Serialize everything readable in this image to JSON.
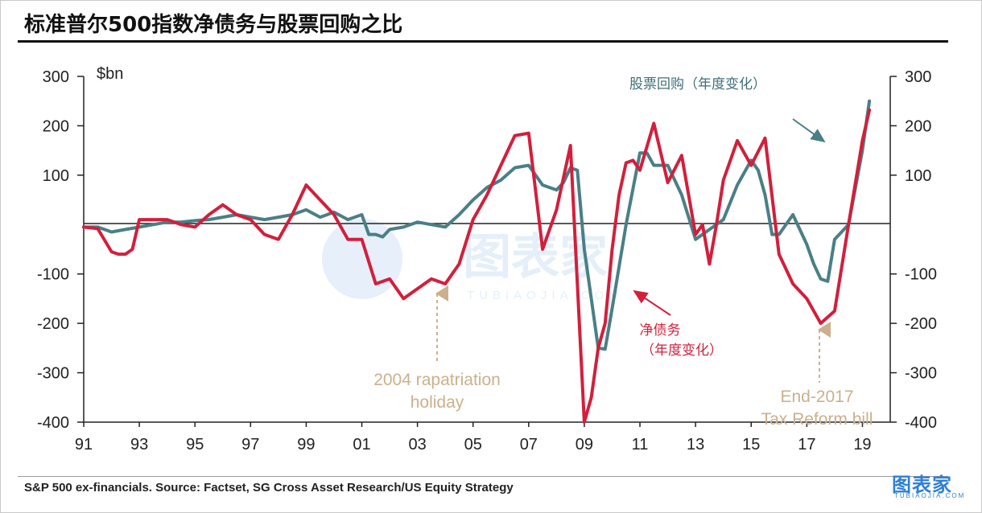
{
  "header": {
    "title": "标准普尔500指数净债务与股票回购之比"
  },
  "footer": {
    "source": "S&P 500 ex-financials. Source: Factset, SG Cross Asset Research/US Equity Strategy"
  },
  "watermark": {
    "logo_text": "图表家",
    "logo_sub": "TUBIAOJIA.COM",
    "center_text": "图表家",
    "center_sub": "TUBIAOJIA.COM",
    "color": "#2e7fd6"
  },
  "chart_data": {
    "type": "line",
    "title": "标准普尔500指数净债务与股票回购之比",
    "ylabel": "$bn",
    "ylim": [
      -400,
      300
    ],
    "yticks": [
      300,
      200,
      100,
      -100,
      -200,
      -300,
      -400
    ],
    "ytick_labels": [
      "300",
      "200",
      "100",
      "-100",
      "-200",
      "-300",
      "-400"
    ],
    "xlim": [
      1991,
      2020
    ],
    "xticks": [
      1991,
      1993,
      1995,
      1997,
      1999,
      2001,
      2003,
      2005,
      2007,
      2009,
      2011,
      2013,
      2015,
      2017,
      2019
    ],
    "xtick_labels": [
      "91",
      "93",
      "95",
      "97",
      "99",
      "01",
      "03",
      "05",
      "07",
      "09",
      "11",
      "13",
      "15",
      "17",
      "19"
    ],
    "colors": {
      "buyback": "#4a7f86",
      "net_debt": "#d21f3c",
      "annotation_tan": "#cbb08c"
    },
    "series": [
      {
        "name": "股票回购（年度变化）",
        "x": [
          1991.0,
          1991.5,
          1992.0,
          1992.5,
          1993.0,
          1993.5,
          1994.0,
          1994.5,
          1995.0,
          1995.5,
          1996.0,
          1996.5,
          1997.0,
          1997.5,
          1998.0,
          1998.5,
          1999.0,
          1999.5,
          2000.0,
          2000.5,
          2001.0,
          2001.25,
          2001.5,
          2001.75,
          2002.0,
          2002.5,
          2003.0,
          2003.5,
          2004.0,
          2004.5,
          2005.0,
          2005.5,
          2006.0,
          2006.5,
          2007.0,
          2007.5,
          2008.0,
          2008.25,
          2008.5,
          2008.75,
          2009.0,
          2009.25,
          2009.5,
          2009.75,
          2010.0,
          2010.5,
          2011.0,
          2011.25,
          2011.5,
          2011.75,
          2012.0,
          2012.5,
          2013.0,
          2013.5,
          2014.0,
          2014.5,
          2015.0,
          2015.25,
          2015.5,
          2015.75,
          2016.0,
          2016.5,
          2017.0,
          2017.25,
          2017.5,
          2017.75,
          2018.0,
          2018.5,
          2019.0,
          2019.25
        ],
        "values": [
          -5,
          -5,
          -15,
          -10,
          -5,
          0,
          5,
          5,
          8,
          10,
          15,
          20,
          15,
          10,
          15,
          20,
          30,
          15,
          25,
          10,
          20,
          -20,
          -20,
          -25,
          -10,
          -5,
          5,
          0,
          -5,
          20,
          50,
          75,
          90,
          115,
          120,
          80,
          70,
          85,
          115,
          110,
          -50,
          -150,
          -250,
          -252,
          -170,
          0,
          145,
          145,
          120,
          120,
          120,
          60,
          -30,
          -10,
          10,
          80,
          130,
          110,
          60,
          -20,
          -20,
          20,
          -40,
          -80,
          -110,
          -115,
          -30,
          0,
          150,
          250
        ]
      },
      {
        "name": "净债务（年度变化）",
        "x": [
          1991.0,
          1991.5,
          1992.0,
          1992.25,
          1992.5,
          1992.75,
          1993.0,
          1993.5,
          1994.0,
          1994.5,
          1995.0,
          1995.5,
          1996.0,
          1996.5,
          1997.0,
          1997.5,
          1998.0,
          1998.5,
          1999.0,
          1999.5,
          2000.0,
          2000.5,
          2001.0,
          2001.5,
          2002.0,
          2002.5,
          2003.0,
          2003.5,
          2004.0,
          2004.5,
          2005.0,
          2005.5,
          2006.0,
          2006.5,
          2007.0,
          2007.5,
          2008.0,
          2008.5,
          2009.0,
          2009.25,
          2009.5,
          2009.75,
          2010.0,
          2010.25,
          2010.5,
          2010.75,
          2011.0,
          2011.5,
          2012.0,
          2012.5,
          2013.0,
          2013.25,
          2013.5,
          2013.75,
          2014.0,
          2014.5,
          2015.0,
          2015.5,
          2016.0,
          2016.5,
          2017.0,
          2017.5,
          2018.0,
          2018.5,
          2019.0,
          2019.25
        ],
        "values": [
          -5,
          -8,
          -55,
          -60,
          -60,
          -50,
          10,
          10,
          10,
          0,
          -5,
          20,
          40,
          20,
          10,
          -20,
          -30,
          20,
          80,
          50,
          20,
          -30,
          -30,
          -120,
          -110,
          -150,
          -130,
          -110,
          -120,
          -80,
          10,
          60,
          120,
          180,
          185,
          -50,
          30,
          160,
          -400,
          -350,
          -250,
          -200,
          -50,
          60,
          125,
          130,
          110,
          205,
          85,
          140,
          -20,
          0,
          -80,
          0,
          90,
          170,
          120,
          175,
          -60,
          -120,
          -150,
          -200,
          -175,
          0,
          170,
          232
        ]
      }
    ],
    "annotations": [
      {
        "text": "股票回购（年度变化）"
      },
      {
        "text_lines": [
          "净债务",
          "（年度变化）"
        ]
      },
      {
        "text_lines": [
          "2004 rapatriation",
          "holiday"
        ]
      },
      {
        "text_lines": [
          "End-2017",
          "Tax Reform bill"
        ]
      }
    ]
  }
}
